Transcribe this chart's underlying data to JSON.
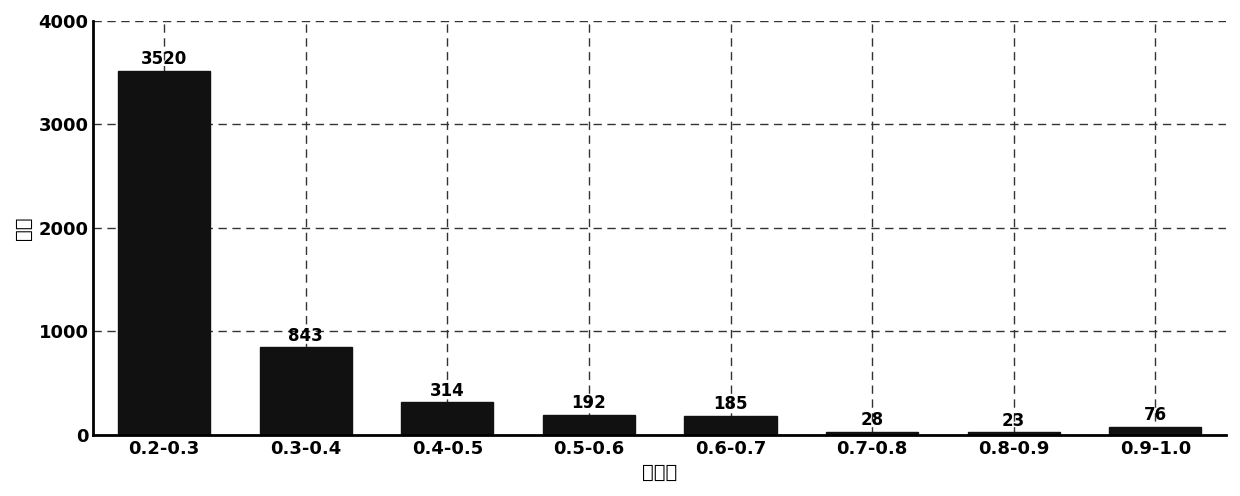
{
  "categories": [
    "0.2-0.3",
    "0.3-0.4",
    "0.4-0.5",
    "0.5-0.6",
    "0.6-0.7",
    "0.7-0.8",
    "0.8-0.9",
    "0.9-1.0"
  ],
  "values": [
    3520,
    843,
    314,
    192,
    185,
    28,
    23,
    76
  ],
  "bar_color": "#111111",
  "xlabel": "相似度",
  "ylabel": "数量",
  "ylim": [
    0,
    4000
  ],
  "yticks": [
    0,
    1000,
    2000,
    3000,
    4000
  ],
  "background_color": "#ffffff",
  "grid_color": "#333333",
  "label_fontsize": 14,
  "tick_fontsize": 13,
  "annotation_fontsize": 12,
  "bar_width": 0.65
}
